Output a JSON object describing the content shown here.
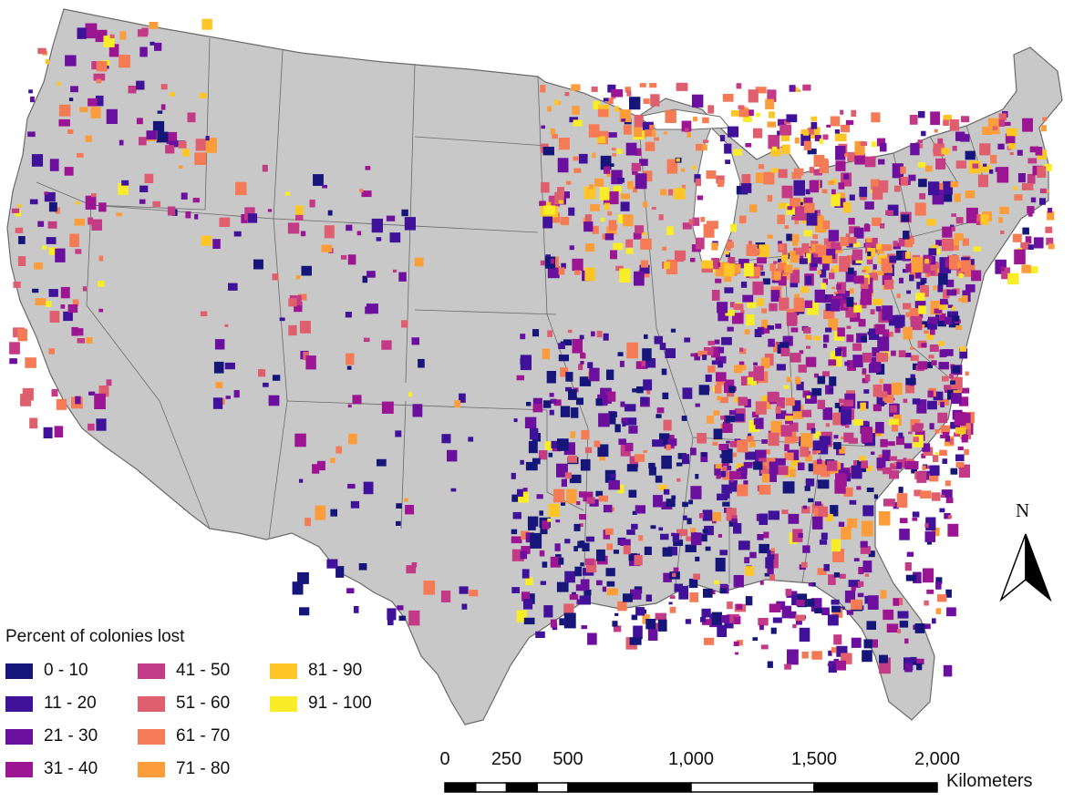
{
  "map": {
    "land_color": "#c8c8c8",
    "border_color": "#6a6a6a"
  },
  "legend": {
    "title": "Percent of colonies lost",
    "items": [
      {
        "label": "0 - 10",
        "color": "#15157a"
      },
      {
        "label": "11 - 20",
        "color": "#40129a"
      },
      {
        "label": "21 - 30",
        "color": "#6a0f9e"
      },
      {
        "label": "31 - 40",
        "color": "#9c1592"
      },
      {
        "label": "41 - 50",
        "color": "#c33a86"
      },
      {
        "label": "51 - 60",
        "color": "#df5f6e"
      },
      {
        "label": "61 - 70",
        "color": "#f47b55"
      },
      {
        "label": "71 - 80",
        "color": "#fb9d3a"
      },
      {
        "label": "81 - 90",
        "color": "#fdc526"
      },
      {
        "label": "91 - 100",
        "color": "#f9ed27"
      }
    ]
  },
  "north_arrow": {
    "label": "N"
  },
  "scale_bar": {
    "ticks": [
      "0",
      "250",
      "500",
      "1,000",
      "1,500",
      "2,000"
    ],
    "tick_values": [
      0,
      250,
      500,
      1000,
      1500,
      2000
    ],
    "units": "Kilometers"
  }
}
